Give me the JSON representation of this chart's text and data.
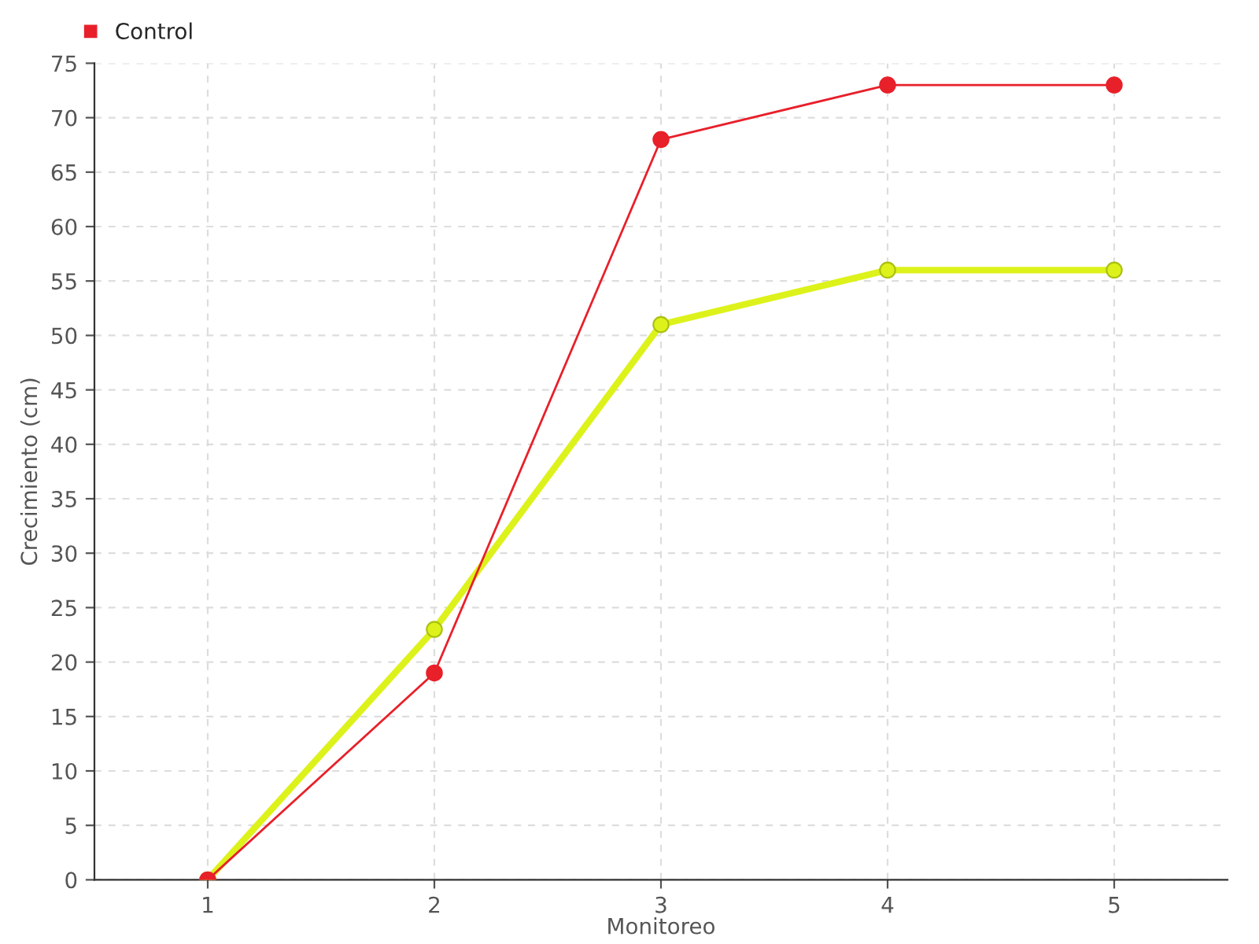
{
  "chart_data": {
    "type": "line",
    "xlabel": "Monitoreo",
    "ylabel": "Crecimiento (cm)",
    "categories": [
      "1",
      "2",
      "3",
      "4",
      "5"
    ],
    "series": [
      {
        "color": "#ddf21a",
        "values": [
          0,
          23,
          51,
          56,
          56
        ]
      },
      {
        "name": "Control",
        "color": "#e8202a",
        "values": [
          0,
          19,
          68,
          73,
          73
        ]
      }
    ],
    "ylim": [
      0,
      75
    ],
    "yticks": [
      0,
      5,
      10,
      15,
      20,
      25,
      30,
      35,
      40,
      45,
      50,
      55,
      60,
      65,
      70,
      75
    ],
    "grid": true,
    "legend": "top left",
    "marker": "circle",
    "line_style": "solid"
  }
}
